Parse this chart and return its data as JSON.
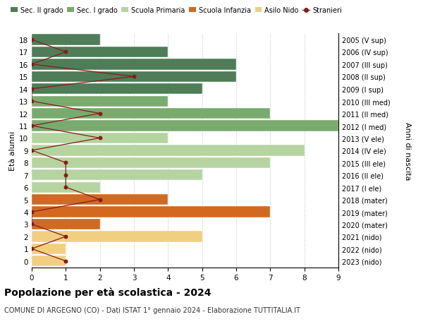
{
  "ages": [
    18,
    17,
    16,
    15,
    14,
    13,
    12,
    11,
    10,
    9,
    8,
    7,
    6,
    5,
    4,
    3,
    2,
    1,
    0
  ],
  "years": [
    "2005 (V sup)",
    "2006 (IV sup)",
    "2007 (III sup)",
    "2008 (II sup)",
    "2009 (I sup)",
    "2010 (III med)",
    "2011 (II med)",
    "2012 (I med)",
    "2013 (V ele)",
    "2014 (IV ele)",
    "2015 (III ele)",
    "2016 (II ele)",
    "2017 (I ele)",
    "2018 (mater)",
    "2019 (mater)",
    "2020 (mater)",
    "2021 (nido)",
    "2022 (nido)",
    "2023 (nido)"
  ],
  "bar_values": [
    2,
    4,
    6,
    6,
    5,
    4,
    7,
    9,
    4,
    8,
    7,
    5,
    2,
    4,
    7,
    2,
    5,
    1,
    1
  ],
  "bar_colors": [
    "#4e7d57",
    "#4e7d57",
    "#4e7d57",
    "#4e7d57",
    "#4e7d57",
    "#7aab6e",
    "#7aab6e",
    "#7aab6e",
    "#b5d4a0",
    "#b5d4a0",
    "#b5d4a0",
    "#b5d4a0",
    "#b5d4a0",
    "#d2691e",
    "#d2691e",
    "#d2691e",
    "#f0d080",
    "#f0d080",
    "#f0d080"
  ],
  "stranieri_values": [
    0,
    1,
    0,
    3,
    0,
    0,
    2,
    0,
    2,
    0,
    1,
    1,
    1,
    2,
    0,
    0,
    1,
    0,
    1
  ],
  "stranieri_color": "#8b1a1a",
  "legend_labels": [
    "Sec. II grado",
    "Sec. I grado",
    "Scuola Primaria",
    "Scuola Infanzia",
    "Asilo Nido",
    "Stranieri"
  ],
  "legend_colors": [
    "#4e7d57",
    "#7aab6e",
    "#b5d4a0",
    "#d2691e",
    "#f0d080",
    "#8b1a1a"
  ],
  "ylabel_left": "Età alunni",
  "ylabel_right": "Anni di nascita",
  "xlim": [
    0,
    9
  ],
  "xticks": [
    0,
    1,
    2,
    3,
    4,
    5,
    6,
    7,
    8,
    9
  ],
  "title": "Popolazione per età scolastica - 2024",
  "subtitle": "COMUNE DI ARGEGNO (CO) - Dati ISTAT 1° gennaio 2024 - Elaborazione TUTTITALIA.IT",
  "background_color": "#ffffff",
  "grid_color": "#cccccc"
}
